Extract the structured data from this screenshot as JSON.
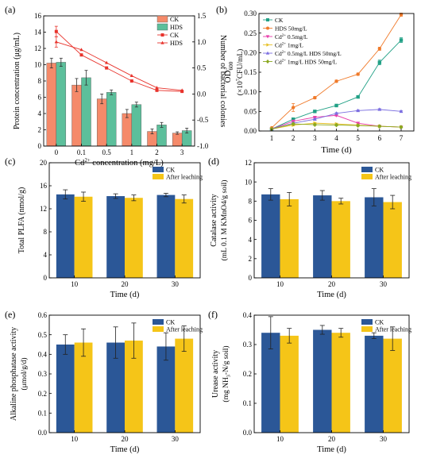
{
  "chart_data": [
    {
      "id": "a",
      "panel_label": "(a)",
      "type": "bar+line",
      "categories": [
        "0",
        "0.1",
        "0.5",
        "1",
        "2",
        "3"
      ],
      "series": [
        {
          "name": "CK",
          "kind": "bar",
          "axis": "left",
          "color": "#f58a6a",
          "values": [
            10.2,
            7.5,
            5.8,
            4.0,
            1.8,
            1.6
          ],
          "errors": [
            0.6,
            0.8,
            0.6,
            0.5,
            0.3,
            0.15
          ]
        },
        {
          "name": "HDS",
          "kind": "bar",
          "axis": "left",
          "color": "#5cbf9b",
          "values": [
            10.3,
            8.4,
            6.6,
            5.1,
            2.6,
            1.9
          ],
          "errors": [
            0.5,
            0.9,
            0.3,
            0.3,
            0.3,
            0.3
          ]
        },
        {
          "name": "CK",
          "kind": "line",
          "axis": "right",
          "color": "#e8332c",
          "marker": "square",
          "values": [
            1.2,
            0.75,
            0.5,
            0.25,
            0.07,
            0.05
          ],
          "errors": [
            0.1,
            0,
            0,
            0,
            0,
            0
          ]
        },
        {
          "name": "HDS",
          "kind": "line",
          "axis": "right",
          "color": "#e8332c",
          "marker": "triangle",
          "values": [
            1.0,
            0.85,
            0.6,
            0.35,
            0.12,
            0.07
          ],
          "errors": [
            0.1,
            0,
            0,
            0,
            0,
            0
          ]
        }
      ],
      "ylabel": "Protein concentration (μg/mL)",
      "ylim": [
        0,
        16
      ],
      "yticks": [
        "0",
        "2",
        "4",
        "6",
        "8",
        "10",
        "12",
        "14",
        "16"
      ],
      "y2label": "Number of bacterial colonies",
      "y2lim": [
        -1.0,
        1.5
      ],
      "y2ticks": [
        "-1.0",
        "-0.5",
        "0.0",
        "0.5",
        "1.0",
        "1.5"
      ],
      "xlabel_parts": [
        "Cd",
        "2+",
        " concentration (mg/L)"
      ],
      "legend": [
        {
          "label": "CK",
          "kind": "bar",
          "color": "#f58a6a"
        },
        {
          "label": "HDS",
          "kind": "bar",
          "color": "#5cbf9b"
        },
        {
          "label": "CK",
          "kind": "line",
          "marker": "square",
          "color": "#e8332c"
        },
        {
          "label": "HDS",
          "kind": "line",
          "marker": "triangle",
          "color": "#e8332c"
        }
      ],
      "legend_position": "top-right"
    },
    {
      "id": "b",
      "panel_label": "(b)",
      "type": "line",
      "x": [
        1,
        2,
        3,
        4,
        5,
        6,
        7
      ],
      "xticks": [
        "1",
        "2",
        "3",
        "4",
        "5",
        "6",
        "7"
      ],
      "series": [
        {
          "name": "CK",
          "color": "#20a085",
          "marker": "square",
          "values": [
            0.005,
            0.03,
            0.05,
            0.065,
            0.087,
            0.175,
            0.232
          ],
          "errors": [
            0,
            0.003,
            0.003,
            0.003,
            0.003,
            0.006,
            0.006
          ]
        },
        {
          "name": "HDS 50mg/L",
          "color": "#f07a2a",
          "marker": "circle",
          "values": [
            0.008,
            0.06,
            0.085,
            0.127,
            0.145,
            0.21,
            0.297
          ],
          "errors": [
            0,
            0.01,
            0.003,
            0.003,
            0.003,
            0.004,
            0.004
          ]
        },
        {
          "name_parts": [
            "Cd",
            "2+",
            " 0.5mg/L"
          ],
          "color": "#e83caa",
          "marker": "triangle-down",
          "values": [
            0.005,
            0.025,
            0.035,
            0.04,
            0.02,
            0.012,
            0.01
          ],
          "errors": [
            0,
            0.002,
            0.002,
            0.002,
            0.002,
            0.002,
            0.002
          ]
        },
        {
          "name_parts": [
            "Cd",
            "2+",
            " 1mg/L"
          ],
          "color": "#e8c22a",
          "marker": "triangle-right",
          "values": [
            0.005,
            0.015,
            0.02,
            0.018,
            0.015,
            0.012,
            0.01
          ],
          "errors": [
            0,
            0.002,
            0.002,
            0.002,
            0.002,
            0.002,
            0.002
          ]
        },
        {
          "name_parts": [
            "Cd",
            "2+",
            " 0.5mg/L HDS 50mg/L"
          ],
          "color": "#7b6ee0",
          "marker": "triangle",
          "values": [
            0.005,
            0.02,
            0.03,
            0.045,
            0.052,
            0.055,
            0.05
          ],
          "errors": [
            0,
            0.002,
            0.002,
            0.002,
            0.002,
            0.002,
            0.002
          ]
        },
        {
          "name_parts": [
            "Cd",
            "2+",
            " 1mg/L HDS 50mg/L"
          ],
          "color": "#8aa820",
          "marker": "diamond",
          "values": [
            0.005,
            0.018,
            0.016,
            0.015,
            0.014,
            0.012,
            0.01
          ],
          "errors": [
            0,
            0.002,
            0.002,
            0.002,
            0.002,
            0.002,
            0.002
          ]
        }
      ],
      "ylabel_parts": [
        "OD",
        "600"
      ],
      "yunit_parts": [
        "(×10",
        "7",
        "CFU/mL)"
      ],
      "ylim": [
        0,
        0.3
      ],
      "yticks": [
        "0.00",
        "0.05",
        "0.10",
        "0.15",
        "0.20",
        "0.25",
        "0.30"
      ],
      "xlabel": "Time (d)",
      "legend_position": "top-left"
    },
    {
      "id": "c",
      "panel_label": "(c)",
      "type": "bar",
      "categories": [
        "10",
        "20",
        "30"
      ],
      "series": [
        {
          "name": "CK",
          "color": "#2b5797",
          "values": [
            14.5,
            14.2,
            14.4
          ],
          "errors": [
            0.8,
            0.4,
            0.3
          ]
        },
        {
          "name": "After leaching",
          "color": "#f5c518",
          "values": [
            14.1,
            13.9,
            13.7
          ],
          "errors": [
            0.8,
            0.5,
            0.7
          ]
        }
      ],
      "ylabel": "Total PLFA (nmol/g)",
      "ylim": [
        0,
        20
      ],
      "yticks": [
        "0",
        "4",
        "8",
        "12",
        "16",
        "20"
      ],
      "xlabel": "Time (d)",
      "legend_position": "top-right"
    },
    {
      "id": "d",
      "panel_label": "(d)",
      "type": "bar",
      "categories": [
        "10",
        "20",
        "30"
      ],
      "series": [
        {
          "name": "CK",
          "color": "#2b5797",
          "values": [
            8.7,
            8.6,
            8.4
          ],
          "errors": [
            0.6,
            0.5,
            0.9
          ]
        },
        {
          "name": "After leaching",
          "color": "#f5c518",
          "values": [
            8.2,
            8.0,
            7.9
          ],
          "errors": [
            0.7,
            0.3,
            0.7
          ]
        }
      ],
      "ylabel_lines": [
        "Catalase activity",
        "(mL 0.1 M KMnO4/g soil)"
      ],
      "ylim": [
        0,
        12
      ],
      "yticks": [
        "0",
        "2",
        "4",
        "6",
        "8",
        "10",
        "12"
      ],
      "xlabel": "Time (d)",
      "legend_position": "top-right"
    },
    {
      "id": "e",
      "panel_label": "(e)",
      "type": "bar",
      "categories": [
        "10",
        "20",
        "30"
      ],
      "series": [
        {
          "name": "CK",
          "color": "#2b5797",
          "values": [
            0.45,
            0.46,
            0.44
          ],
          "errors": [
            0.05,
            0.08,
            0.07
          ]
        },
        {
          "name": "After leaching",
          "color": "#f5c518",
          "values": [
            0.46,
            0.47,
            0.48
          ],
          "errors": [
            0.07,
            0.09,
            0.065
          ]
        }
      ],
      "ylabel": "Alkaline phosphatase activity",
      "yunit": "(μmol/g/d)",
      "ylim": [
        0,
        0.6
      ],
      "yticks": [
        "0.0",
        "0.1",
        "0.2",
        "0.3",
        "0.4",
        "0.5",
        "0.6"
      ],
      "xlabel": "Time (d)",
      "legend_position": "top-right"
    },
    {
      "id": "f",
      "panel_label": "(f)",
      "type": "bar",
      "categories": [
        "10",
        "20",
        "30"
      ],
      "series": [
        {
          "name": "CK",
          "color": "#2b5797",
          "values": [
            0.34,
            0.35,
            0.33
          ],
          "errors": [
            0.055,
            0.015,
            0.01
          ]
        },
        {
          "name": "After leaching",
          "color": "#f5c518",
          "values": [
            0.33,
            0.34,
            0.32
          ],
          "errors": [
            0.025,
            0.015,
            0.04
          ]
        }
      ],
      "ylabel": "Urease activity",
      "yunit_parts": [
        "(mg NH",
        "3",
        "-N/g soil)"
      ],
      "ylim": [
        0,
        0.4
      ],
      "yticks": [
        "0.0",
        "0.1",
        "0.2",
        "0.3",
        "0.4"
      ],
      "xlabel": "Time (d)",
      "legend_position": "top-right"
    }
  ]
}
